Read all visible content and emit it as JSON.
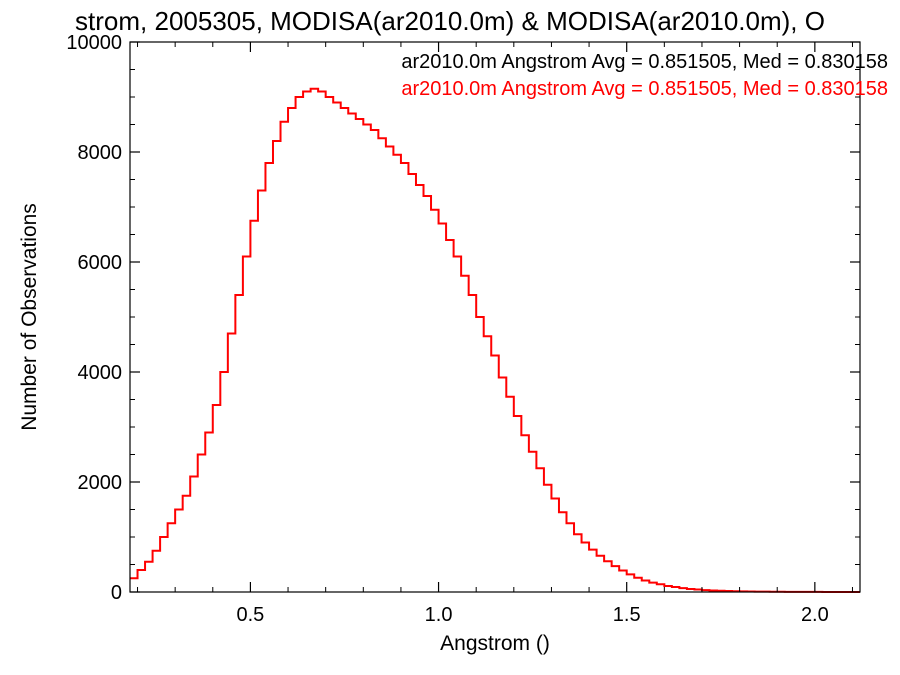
{
  "chart_data": {
    "type": "line",
    "title": "strom, 2005305, MODISA(ar2010.0m) & MODISA(ar2010.0m), O",
    "xlabel": "Angstrom ()",
    "ylabel": "Number of Observations",
    "xlim": [
      0.18,
      2.12
    ],
    "ylim": [
      0,
      10000
    ],
    "x_ticks": [
      0.5,
      1.0,
      1.5,
      2.0
    ],
    "x_tick_labels": [
      "0.5",
      "1.0",
      "1.5",
      "2.0"
    ],
    "y_ticks": [
      0,
      2000,
      4000,
      6000,
      8000,
      10000
    ],
    "y_tick_labels": [
      "0",
      "2000",
      "4000",
      "6000",
      "8000",
      "10000"
    ],
    "grid": false,
    "step": true,
    "annotations": [
      {
        "text": "ar2010.0m Angstrom Avg = 0.851505, Med = 0.830158",
        "color": "#000000"
      },
      {
        "text": "ar2010.0m Angstrom Avg = 0.851505, Med = 0.830158",
        "color": "#ff0000"
      }
    ],
    "series": [
      {
        "color": "#ff0000",
        "x": [
          0.18,
          0.2,
          0.22,
          0.24,
          0.26,
          0.28,
          0.3,
          0.32,
          0.34,
          0.36,
          0.38,
          0.4,
          0.42,
          0.44,
          0.46,
          0.48,
          0.5,
          0.52,
          0.54,
          0.56,
          0.58,
          0.6,
          0.62,
          0.64,
          0.66,
          0.68,
          0.7,
          0.72,
          0.74,
          0.76,
          0.78,
          0.8,
          0.82,
          0.84,
          0.86,
          0.88,
          0.9,
          0.92,
          0.94,
          0.96,
          0.98,
          1.0,
          1.02,
          1.04,
          1.06,
          1.08,
          1.1,
          1.12,
          1.14,
          1.16,
          1.18,
          1.2,
          1.22,
          1.24,
          1.26,
          1.28,
          1.3,
          1.32,
          1.34,
          1.36,
          1.38,
          1.4,
          1.42,
          1.44,
          1.46,
          1.48,
          1.5,
          1.52,
          1.54,
          1.56,
          1.58,
          1.6,
          1.62,
          1.64,
          1.66,
          1.68,
          1.7,
          1.72,
          1.74,
          1.76,
          1.78,
          1.8,
          1.82,
          1.84,
          1.86,
          1.88,
          1.9,
          1.92,
          1.94,
          1.96,
          1.98,
          2.0,
          2.02,
          2.04,
          2.06,
          2.08,
          2.1,
          2.12
        ],
        "values": [
          250,
          400,
          550,
          750,
          1000,
          1250,
          1500,
          1750,
          2100,
          2500,
          2900,
          3400,
          4000,
          4700,
          5400,
          6100,
          6750,
          7300,
          7800,
          8200,
          8550,
          8800,
          9000,
          9100,
          9150,
          9100,
          9000,
          8900,
          8800,
          8700,
          8600,
          8500,
          8400,
          8250,
          8100,
          7950,
          7800,
          7600,
          7400,
          7200,
          6950,
          6700,
          6400,
          6100,
          5750,
          5400,
          5000,
          4650,
          4300,
          3900,
          3550,
          3200,
          2850,
          2550,
          2250,
          1950,
          1700,
          1450,
          1250,
          1050,
          900,
          770,
          660,
          560,
          470,
          390,
          320,
          260,
          210,
          170,
          140,
          110,
          90,
          70,
          55,
          45,
          35,
          28,
          22,
          18,
          14,
          11,
          9,
          7,
          6,
          5,
          4,
          3,
          3,
          2,
          2,
          2,
          1,
          1,
          1,
          1,
          1,
          1
        ]
      }
    ]
  }
}
